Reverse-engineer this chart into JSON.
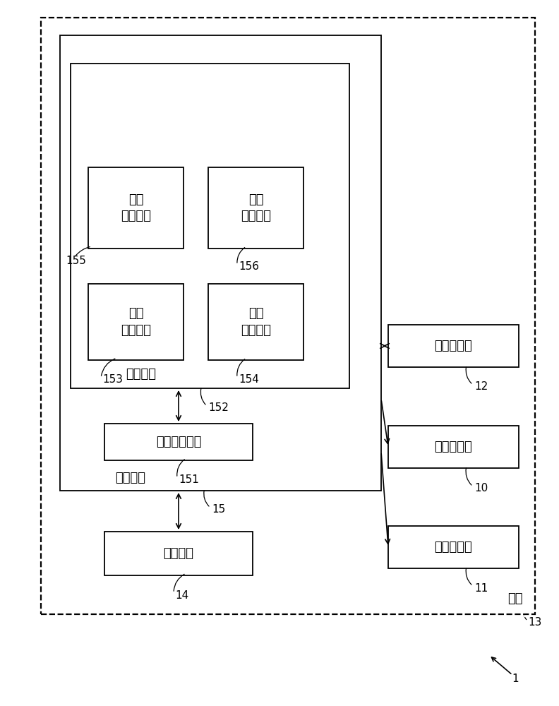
{
  "bg_color": "#ffffff",
  "line_color": "#000000",
  "box_color": "#ffffff",
  "label_1": "1",
  "label_13": "13",
  "label_shell": "壳体",
  "label_14": "14",
  "label_15": "15",
  "label_11": "11",
  "label_10": "10",
  "label_12": "12",
  "label_151": "151",
  "label_152": "152",
  "label_153": "153",
  "label_154": "154",
  "label_155": "155",
  "label_156": "156",
  "box_motion": "运动模块",
  "box_process": "处理模块",
  "box_guide": "导向启动单元",
  "box_control": "控制单元",
  "box_central_judge": "中央\n判断单元",
  "box_time_correct": "时间\n校正单元",
  "box_first_judge": "第一\n判断单元",
  "box_second_judge": "第二\n判断单元",
  "box_sensor1": "第一传感器",
  "box_sensor_central": "中央传感器",
  "box_sensor2": "第二传感器",
  "font_size_main": 13,
  "font_size_label": 11,
  "font_size_small": 11
}
